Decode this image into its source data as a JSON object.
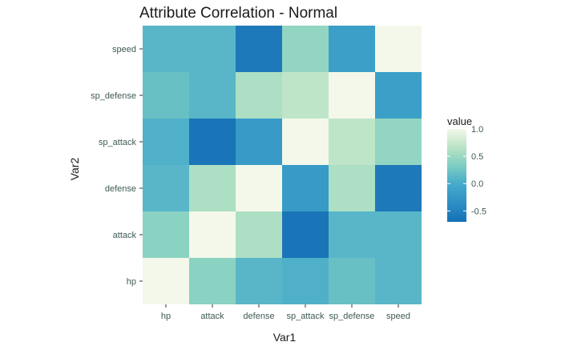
{
  "chart_data": {
    "type": "heatmap",
    "title": "Attribute Correlation - Normal",
    "xlabel": "Var1",
    "ylabel": "Var2",
    "x_categories": [
      "hp",
      "attack",
      "defense",
      "sp_attack",
      "sp_defense",
      "speed"
    ],
    "y_categories": [
      "hp",
      "attack",
      "defense",
      "sp_attack",
      "sp_defense",
      "speed"
    ],
    "values": [
      [
        1.0,
        0.4,
        0.1,
        0.05,
        0.2,
        0.1
      ],
      [
        0.4,
        1.0,
        0.6,
        -0.65,
        0.1,
        0.1
      ],
      [
        0.1,
        0.6,
        1.0,
        -0.2,
        0.6,
        -0.6
      ],
      [
        0.05,
        -0.65,
        -0.2,
        1.0,
        0.7,
        0.45
      ],
      [
        0.2,
        0.1,
        0.6,
        0.7,
        1.0,
        -0.15
      ],
      [
        0.1,
        0.1,
        -0.6,
        0.45,
        -0.15,
        1.0
      ]
    ],
    "grid": true,
    "legend": {
      "title": "value",
      "position": "right",
      "min": -0.7,
      "max": 1.0,
      "ticks": [
        1.0,
        0.5,
        0.0,
        -0.5
      ],
      "tick_labels": [
        "1.0",
        "0.5",
        "0.0",
        "-0.5"
      ],
      "colors": [
        "#1670b5",
        "#2d8fc4",
        "#44a9cb",
        "#7ccdc2",
        "#b8e3c4",
        "#f3f8ea"
      ]
    },
    "panel_background": "#edf3e6"
  }
}
